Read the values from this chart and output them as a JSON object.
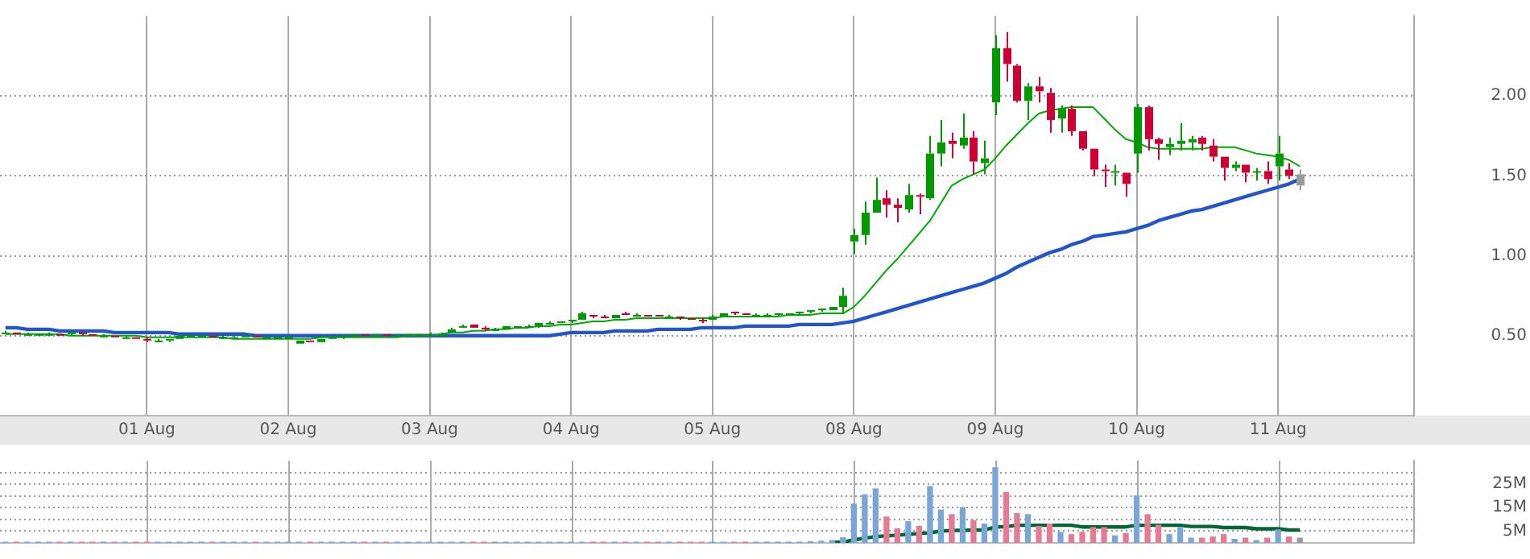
{
  "chart_data": [
    {
      "type": "candlestick",
      "categories": [
        null,
        null,
        null,
        null,
        null,
        null,
        null,
        null,
        null,
        null,
        null,
        null,
        null,
        "01 Aug",
        null,
        null,
        null,
        null,
        null,
        null,
        null,
        null,
        null,
        null,
        null,
        null,
        "02 Aug",
        null,
        null,
        null,
        null,
        null,
        null,
        null,
        null,
        null,
        null,
        null,
        null,
        "03 Aug",
        null,
        null,
        null,
        null,
        null,
        null,
        null,
        null,
        null,
        null,
        null,
        null,
        "04 Aug",
        null,
        null,
        null,
        null,
        null,
        null,
        null,
        null,
        null,
        null,
        null,
        null,
        "05 Aug",
        null,
        null,
        null,
        null,
        null,
        null,
        null,
        null,
        null,
        null,
        null,
        null,
        "08 Aug",
        null,
        null,
        null,
        null,
        null,
        null,
        null,
        null,
        null,
        null,
        null,
        null,
        "09 Aug",
        null,
        null,
        null,
        null,
        null,
        null,
        null,
        null,
        null,
        null,
        null,
        null,
        "10 Aug",
        null,
        null,
        null,
        null,
        null,
        null,
        null,
        null,
        null,
        null,
        null,
        null,
        "11 Aug",
        null,
        null,
        null,
        null,
        null,
        null,
        null,
        null,
        null,
        null,
        null,
        null
      ],
      "ohlc": [
        [
          0.51,
          0.53,
          0.51,
          0.52
        ],
        [
          0.52,
          0.52,
          0.51,
          0.51
        ],
        [
          0.51,
          0.52,
          0.5,
          0.51
        ],
        [
          0.51,
          0.51,
          0.5,
          0.51
        ],
        [
          0.51,
          0.52,
          0.51,
          0.51
        ],
        [
          0.51,
          0.51,
          0.5,
          0.5
        ],
        [
          0.51,
          0.52,
          0.5,
          0.52
        ],
        [
          0.52,
          0.52,
          0.5,
          0.51
        ],
        [
          0.51,
          0.51,
          0.5,
          0.5
        ],
        [
          0.5,
          0.51,
          0.49,
          0.5
        ],
        [
          0.5,
          0.5,
          0.49,
          0.49
        ],
        [
          0.49,
          0.5,
          0.48,
          0.49
        ],
        [
          0.49,
          0.49,
          0.48,
          0.48
        ],
        [
          0.48,
          0.49,
          0.46,
          0.47
        ],
        [
          0.47,
          0.48,
          0.46,
          0.47
        ],
        [
          0.47,
          0.48,
          0.46,
          0.48
        ],
        [
          0.48,
          0.5,
          0.48,
          0.5
        ],
        [
          0.5,
          0.51,
          0.49,
          0.5
        ],
        [
          0.5,
          0.5,
          0.49,
          0.5
        ],
        [
          0.5,
          0.5,
          0.49,
          0.49
        ],
        [
          0.49,
          0.5,
          0.48,
          0.49
        ],
        [
          0.49,
          0.5,
          0.49,
          0.49
        ],
        [
          0.49,
          0.5,
          0.49,
          0.5
        ],
        [
          0.5,
          0.5,
          0.49,
          0.49
        ],
        [
          0.49,
          0.5,
          0.49,
          0.49
        ],
        [
          0.49,
          0.5,
          0.48,
          0.49
        ],
        [
          0.49,
          0.5,
          0.48,
          0.49
        ],
        [
          0.45,
          0.47,
          0.45,
          0.47
        ],
        [
          0.47,
          0.47,
          0.46,
          0.46
        ],
        [
          0.46,
          0.48,
          0.46,
          0.48
        ],
        [
          0.48,
          0.49,
          0.48,
          0.49
        ],
        [
          0.49,
          0.5,
          0.48,
          0.5
        ],
        [
          0.5,
          0.51,
          0.5,
          0.51
        ],
        [
          0.51,
          0.51,
          0.5,
          0.5
        ],
        [
          0.5,
          0.51,
          0.5,
          0.51
        ],
        [
          0.51,
          0.51,
          0.5,
          0.5
        ],
        [
          0.5,
          0.51,
          0.5,
          0.5
        ],
        [
          0.5,
          0.51,
          0.5,
          0.51
        ],
        [
          0.51,
          0.51,
          0.5,
          0.51
        ],
        [
          0.51,
          0.52,
          0.5,
          0.51
        ],
        [
          0.51,
          0.52,
          0.5,
          0.51
        ],
        [
          0.52,
          0.55,
          0.52,
          0.54
        ],
        [
          0.55,
          0.57,
          0.55,
          0.56
        ],
        [
          0.57,
          0.57,
          0.55,
          0.55
        ],
        [
          0.55,
          0.56,
          0.53,
          0.54
        ],
        [
          0.54,
          0.55,
          0.53,
          0.54
        ],
        [
          0.54,
          0.56,
          0.54,
          0.56
        ],
        [
          0.56,
          0.56,
          0.55,
          0.56
        ],
        [
          0.56,
          0.57,
          0.55,
          0.56
        ],
        [
          0.56,
          0.58,
          0.55,
          0.58
        ],
        [
          0.58,
          0.59,
          0.57,
          0.58
        ],
        [
          0.58,
          0.59,
          0.58,
          0.59
        ],
        [
          0.59,
          0.6,
          0.58,
          0.6
        ],
        [
          0.6,
          0.65,
          0.6,
          0.64
        ],
        [
          0.63,
          0.63,
          0.61,
          0.62
        ],
        [
          0.62,
          0.63,
          0.61,
          0.61
        ],
        [
          0.61,
          0.63,
          0.61,
          0.63
        ],
        [
          0.64,
          0.65,
          0.63,
          0.63
        ],
        [
          0.63,
          0.64,
          0.62,
          0.63
        ],
        [
          0.63,
          0.63,
          0.62,
          0.62
        ],
        [
          0.63,
          0.63,
          0.62,
          0.62
        ],
        [
          0.62,
          0.63,
          0.61,
          0.62
        ],
        [
          0.62,
          0.62,
          0.6,
          0.61
        ],
        [
          0.61,
          0.61,
          0.6,
          0.6
        ],
        [
          0.6,
          0.61,
          0.58,
          0.59
        ],
        [
          0.6,
          0.63,
          0.6,
          0.62
        ],
        [
          0.62,
          0.64,
          0.62,
          0.64
        ],
        [
          0.65,
          0.65,
          0.63,
          0.64
        ],
        [
          0.64,
          0.64,
          0.63,
          0.63
        ],
        [
          0.63,
          0.64,
          0.62,
          0.63
        ],
        [
          0.63,
          0.64,
          0.62,
          0.63
        ],
        [
          0.63,
          0.64,
          0.62,
          0.64
        ],
        [
          0.64,
          0.64,
          0.63,
          0.64
        ],
        [
          0.64,
          0.65,
          0.63,
          0.65
        ],
        [
          0.65,
          0.66,
          0.64,
          0.66
        ],
        [
          0.66,
          0.67,
          0.65,
          0.67
        ],
        [
          0.66,
          0.68,
          0.66,
          0.68
        ],
        [
          0.68,
          0.8,
          0.64,
          0.75
        ],
        [
          1.09,
          1.17,
          1.01,
          1.13
        ],
        [
          1.13,
          1.34,
          1.07,
          1.27
        ],
        [
          1.27,
          1.49,
          1.27,
          1.35
        ],
        [
          1.36,
          1.41,
          1.24,
          1.32
        ],
        [
          1.32,
          1.36,
          1.21,
          1.3
        ],
        [
          1.29,
          1.45,
          1.27,
          1.38
        ],
        [
          1.38,
          1.39,
          1.26,
          1.37
        ],
        [
          1.36,
          1.75,
          1.35,
          1.64
        ],
        [
          1.64,
          1.85,
          1.56,
          1.71
        ],
        [
          1.72,
          1.77,
          1.61,
          1.7
        ],
        [
          1.69,
          1.89,
          1.67,
          1.74
        ],
        [
          1.74,
          1.78,
          1.51,
          1.59
        ],
        [
          1.58,
          1.72,
          1.51,
          1.61
        ],
        [
          1.96,
          2.38,
          1.88,
          2.3
        ],
        [
          2.3,
          2.4,
          2.09,
          2.2
        ],
        [
          2.19,
          2.2,
          1.96,
          1.97
        ],
        [
          1.97,
          2.08,
          1.85,
          2.06
        ],
        [
          2.06,
          2.12,
          1.96,
          2.03
        ],
        [
          2.02,
          2.05,
          1.77,
          1.85
        ],
        [
          1.86,
          1.94,
          1.77,
          1.92
        ],
        [
          1.92,
          1.94,
          1.75,
          1.78
        ],
        [
          1.78,
          1.78,
          1.66,
          1.67
        ],
        [
          1.67,
          1.67,
          1.5,
          1.54
        ],
        [
          1.54,
          1.57,
          1.43,
          1.53
        ],
        [
          1.52,
          1.57,
          1.44,
          1.53
        ],
        [
          1.52,
          1.52,
          1.37,
          1.45
        ],
        [
          1.64,
          1.95,
          1.52,
          1.93
        ],
        [
          1.93,
          1.94,
          1.66,
          1.73
        ],
        [
          1.73,
          1.74,
          1.6,
          1.7
        ],
        [
          1.68,
          1.74,
          1.63,
          1.7
        ],
        [
          1.7,
          1.83,
          1.66,
          1.72
        ],
        [
          1.71,
          1.75,
          1.66,
          1.73
        ],
        [
          1.74,
          1.75,
          1.66,
          1.7
        ],
        [
          1.69,
          1.73,
          1.59,
          1.62
        ],
        [
          1.62,
          1.62,
          1.47,
          1.55
        ],
        [
          1.55,
          1.59,
          1.53,
          1.57
        ],
        [
          1.57,
          1.57,
          1.46,
          1.52
        ],
        [
          1.53,
          1.55,
          1.47,
          1.53
        ],
        [
          1.53,
          1.59,
          1.45,
          1.48
        ],
        [
          1.56,
          1.75,
          1.47,
          1.64
        ],
        [
          1.54,
          1.58,
          1.48,
          1.5
        ],
        [
          1.51,
          1.54,
          1.41,
          1.44
        ],
        null,
        null,
        null,
        null,
        null,
        null,
        null,
        null,
        null,
        null
      ],
      "colors": [
        "#009900",
        "#cc0033",
        "#009900",
        "#009900",
        "#009900",
        "#cc0033",
        "#009900",
        "#cc0033",
        "#cc0033",
        "#009900",
        "#cc0033",
        "#009900",
        "#cc0033",
        "#cc0033",
        "#009900",
        "#009900",
        "#009900",
        "#009900",
        "#009900",
        "#cc0033",
        "#009900",
        "#009900",
        "#009900",
        "#cc0033",
        "#009900",
        "#009900",
        "#009900",
        "#009900",
        "#cc0033",
        "#009900",
        "#009900",
        "#009900",
        "#009900",
        "#cc0033",
        "#009900",
        "#cc0033",
        "#009900",
        "#009900",
        "#009900",
        "#009900",
        "#009900",
        "#009900",
        "#009900",
        "#cc0033",
        "#cc0033",
        "#009900",
        "#009900",
        "#009900",
        "#009900",
        "#009900",
        "#009900",
        "#009900",
        "#009900",
        "#009900",
        "#cc0033",
        "#cc0033",
        "#009900",
        "#cc0033",
        "#009900",
        "#cc0033",
        "#cc0033",
        "#009900",
        "#cc0033",
        "#cc0033",
        "#cc0033",
        "#009900",
        "#009900",
        "#cc0033",
        "#cc0033",
        "#009900",
        "#009900",
        "#009900",
        "#009900",
        "#009900",
        "#009900",
        "#009900",
        "#009900",
        "#009900",
        "#009900",
        "#009900",
        "#009900",
        "#cc0033",
        "#cc0033",
        "#009900",
        "#cc0033",
        "#009900",
        "#009900",
        "#cc0033",
        "#009900",
        "#cc0033",
        "#009900",
        "#009900",
        "#cc0033",
        "#cc0033",
        "#009900",
        "#cc0033",
        "#cc0033",
        "#009900",
        "#cc0033",
        "#cc0033",
        "#cc0033",
        "#cc0033",
        "#009900",
        "#cc0033",
        "#009900",
        "#cc0033",
        "#cc0033",
        "#009900",
        "#009900",
        "#009900",
        "#cc0033",
        "#cc0033",
        "#cc0033",
        "#009900",
        "#cc0033",
        "#009900",
        "#cc0033",
        "#009900",
        "#cc0033",
        "#999999",
        null,
        null,
        null,
        null,
        null,
        null,
        null,
        null,
        null,
        null
      ],
      "series": [
        {
          "type": "line",
          "color": "#00aa00",
          "values": [
            0.51,
            0.51,
            0.51,
            0.51,
            0.51,
            0.51,
            0.5,
            0.5,
            0.5,
            0.5,
            0.5,
            0.5,
            0.5,
            0.49,
            0.49,
            0.49,
            0.49,
            0.49,
            0.49,
            0.49,
            0.49,
            0.48,
            0.48,
            0.48,
            0.48,
            0.48,
            0.48,
            0.48,
            0.48,
            0.49,
            0.49,
            0.49,
            0.49,
            0.49,
            0.49,
            0.49,
            0.49,
            0.5,
            0.5,
            0.5,
            0.51,
            0.52,
            0.52,
            0.53,
            0.53,
            0.54,
            0.54,
            0.55,
            0.55,
            0.56,
            0.56,
            0.57,
            0.57,
            0.58,
            0.59,
            0.59,
            0.6,
            0.6,
            0.61,
            0.61,
            0.61,
            0.61,
            0.61,
            0.61,
            0.61,
            0.61,
            0.62,
            0.62,
            0.62,
            0.62,
            0.62,
            0.62,
            0.63,
            0.63,
            0.63,
            0.64,
            0.64,
            0.64,
            0.68,
            0.75,
            0.83,
            0.91,
            0.98,
            1.06,
            1.14,
            1.22,
            1.33,
            1.44,
            1.48,
            1.51,
            1.54,
            1.61,
            1.69,
            1.76,
            1.83,
            1.89,
            1.91,
            1.92,
            1.93,
            1.93,
            1.93,
            1.86,
            1.79,
            1.73,
            1.71,
            1.68,
            1.67,
            1.67,
            1.67,
            1.67,
            1.67,
            1.68,
            1.68,
            1.68,
            1.66,
            1.64,
            1.63,
            1.62,
            1.6,
            1.56,
            null,
            null,
            null,
            null,
            null,
            null,
            null,
            null,
            null,
            null
          ]
        },
        {
          "type": "line",
          "color": "#2255cc",
          "values": [
            0.55,
            0.55,
            0.54,
            0.54,
            0.54,
            0.53,
            0.53,
            0.53,
            0.53,
            0.53,
            0.52,
            0.52,
            0.52,
            0.52,
            0.52,
            0.52,
            0.51,
            0.51,
            0.51,
            0.51,
            0.51,
            0.51,
            0.51,
            0.5,
            0.5,
            0.5,
            0.5,
            0.5,
            0.5,
            0.5,
            0.5,
            0.5,
            0.5,
            0.5,
            0.5,
            0.5,
            0.5,
            0.5,
            0.5,
            0.5,
            0.5,
            0.5,
            0.5,
            0.5,
            0.5,
            0.5,
            0.5,
            0.5,
            0.5,
            0.5,
            0.5,
            0.51,
            0.52,
            0.52,
            0.52,
            0.52,
            0.53,
            0.53,
            0.53,
            0.53,
            0.54,
            0.54,
            0.54,
            0.54,
            0.55,
            0.55,
            0.55,
            0.55,
            0.56,
            0.56,
            0.56,
            0.56,
            0.56,
            0.57,
            0.57,
            0.57,
            0.57,
            0.58,
            0.59,
            0.61,
            0.63,
            0.65,
            0.67,
            0.69,
            0.71,
            0.73,
            0.75,
            0.77,
            0.79,
            0.81,
            0.83,
            0.86,
            0.89,
            0.93,
            0.96,
            0.99,
            1.02,
            1.04,
            1.07,
            1.09,
            1.12,
            1.13,
            1.14,
            1.15,
            1.17,
            1.19,
            1.22,
            1.24,
            1.26,
            1.28,
            1.29,
            1.31,
            1.33,
            1.35,
            1.37,
            1.39,
            1.41,
            1.43,
            1.45,
            1.48,
            null,
            null,
            null,
            null,
            null,
            null,
            null,
            null,
            null,
            null
          ]
        }
      ],
      "ylim": [
        0,
        2.5
      ],
      "yticks": [
        {
          "value": 0.5,
          "label": "0.50"
        },
        {
          "value": 1,
          "label": "1.00"
        },
        {
          "value": 1.5,
          "label": "1.50"
        },
        {
          "value": 2,
          "label": "2.00"
        }
      ],
      "grid": true
    },
    {
      "type": "bar",
      "categories": [
        null,
        null,
        null,
        null,
        null,
        null,
        null,
        null,
        null,
        null,
        null,
        null,
        null,
        null,
        null,
        null,
        null,
        null,
        null,
        null,
        null,
        null,
        null,
        null,
        null,
        null,
        null,
        null,
        null,
        null,
        null,
        null,
        null,
        null,
        null,
        null,
        null,
        null,
        null,
        null,
        null,
        null,
        null,
        null,
        null,
        null,
        null,
        null,
        null,
        null,
        null,
        null,
        null,
        null,
        null,
        null,
        null,
        null,
        null,
        null,
        null,
        null,
        null,
        null,
        null,
        null,
        null,
        null,
        null,
        null,
        null,
        null,
        null,
        null,
        null,
        null,
        null,
        null,
        null,
        null,
        null,
        null,
        null,
        null,
        null,
        null,
        null,
        null,
        null,
        null,
        null,
        null,
        null,
        null,
        null,
        null,
        null,
        null,
        null,
        null,
        null,
        null,
        null,
        null,
        null,
        null,
        null,
        null,
        null,
        null,
        null,
        null,
        null,
        null,
        null,
        null,
        null,
        null,
        null,
        null,
        null,
        null,
        null,
        null,
        null,
        null,
        null,
        null,
        null,
        null
      ],
      "series": [
        {
          "type": "bar",
          "values": [
            0.3,
            0.3,
            0.3,
            0.3,
            0.3,
            0.3,
            0.3,
            0.3,
            0.3,
            0.3,
            0.3,
            0.3,
            0.3,
            0.3,
            0.3,
            0.3,
            0.3,
            0.3,
            0.3,
            0.3,
            0.3,
            0.3,
            0.3,
            0.3,
            0.3,
            0.3,
            0.3,
            0.3,
            0.3,
            0.3,
            0.3,
            0.3,
            0.3,
            0.3,
            0.3,
            0.3,
            0.3,
            0.3,
            0.3,
            0.3,
            0.3,
            0.3,
            0.3,
            0.3,
            0.3,
            0.3,
            0.3,
            0.3,
            0.3,
            0.3,
            0.3,
            0.3,
            0.3,
            0.3,
            0.3,
            0.3,
            0.3,
            0.3,
            0.3,
            0.3,
            0.3,
            0.3,
            0.3,
            0.3,
            0.3,
            0.3,
            0.3,
            0.3,
            0.3,
            0.3,
            0.3,
            0.3,
            0.3,
            0.3,
            0.5,
            0.7,
            1,
            2.2,
            16.5,
            20.5,
            23,
            11,
            6,
            9,
            7,
            24,
            14,
            12,
            15,
            9.5,
            8,
            32,
            21.5,
            12.5,
            12,
            7,
            8,
            4.5,
            3.5,
            4.5,
            6.5,
            6.5,
            3,
            4,
            20,
            12,
            7.5,
            3.5,
            6.5,
            2,
            2,
            2.5,
            3.5,
            1.5,
            2,
            1,
            2,
            5.5,
            2.5,
            2,
            null,
            null,
            null,
            null,
            null,
            null,
            null,
            null,
            null,
            null
          ],
          "colors": [
            "#7aa6d6",
            "#e57a94",
            "#7aa6d6",
            "#7aa6d6",
            "#7aa6d6",
            "#e57a94",
            "#7aa6d6",
            "#e57a94",
            "#e57a94",
            "#7aa6d6",
            "#e57a94",
            "#7aa6d6",
            "#e57a94",
            "#e57a94",
            "#7aa6d6",
            "#7aa6d6",
            "#7aa6d6",
            "#7aa6d6",
            "#7aa6d6",
            "#e57a94",
            "#7aa6d6",
            "#7aa6d6",
            "#7aa6d6",
            "#e57a94",
            "#7aa6d6",
            "#7aa6d6",
            "#7aa6d6",
            "#7aa6d6",
            "#e57a94",
            "#7aa6d6",
            "#7aa6d6",
            "#7aa6d6",
            "#7aa6d6",
            "#e57a94",
            "#7aa6d6",
            "#e57a94",
            "#7aa6d6",
            "#7aa6d6",
            "#7aa6d6",
            "#7aa6d6",
            "#7aa6d6",
            "#7aa6d6",
            "#7aa6d6",
            "#e57a94",
            "#e57a94",
            "#7aa6d6",
            "#7aa6d6",
            "#7aa6d6",
            "#7aa6d6",
            "#7aa6d6",
            "#7aa6d6",
            "#7aa6d6",
            "#7aa6d6",
            "#7aa6d6",
            "#e57a94",
            "#e57a94",
            "#7aa6d6",
            "#e57a94",
            "#7aa6d6",
            "#e57a94",
            "#e57a94",
            "#7aa6d6",
            "#e57a94",
            "#e57a94",
            "#e57a94",
            "#7aa6d6",
            "#7aa6d6",
            "#e57a94",
            "#e57a94",
            "#7aa6d6",
            "#7aa6d6",
            "#7aa6d6",
            "#7aa6d6",
            "#7aa6d6",
            "#7aa6d6",
            "#7aa6d6",
            "#7aa6d6",
            "#7aa6d6",
            "#7aa6d6",
            "#7aa6d6",
            "#7aa6d6",
            "#e57a94",
            "#e57a94",
            "#7aa6d6",
            "#e57a94",
            "#7aa6d6",
            "#7aa6d6",
            "#e57a94",
            "#7aa6d6",
            "#e57a94",
            "#7aa6d6",
            "#7aa6d6",
            "#e57a94",
            "#e57a94",
            "#7aa6d6",
            "#e57a94",
            "#e57a94",
            "#7aa6d6",
            "#e57a94",
            "#e57a94",
            "#e57a94",
            "#e57a94",
            "#7aa6d6",
            "#e57a94",
            "#7aa6d6",
            "#e57a94",
            "#e57a94",
            "#7aa6d6",
            "#7aa6d6",
            "#7aa6d6",
            "#e57a94",
            "#e57a94",
            "#e57a94",
            "#7aa6d6",
            "#e57a94",
            "#7aa6d6",
            "#e57a94",
            "#7aa6d6",
            "#e57a94",
            "#999999",
            null,
            null,
            null,
            null,
            null,
            null,
            null,
            null,
            null,
            null
          ]
        },
        {
          "type": "line",
          "color": "#006633",
          "values": [
            null,
            null,
            null,
            null,
            null,
            null,
            null,
            null,
            null,
            null,
            null,
            null,
            null,
            null,
            null,
            null,
            null,
            null,
            null,
            null,
            null,
            null,
            null,
            null,
            null,
            null,
            null,
            null,
            null,
            null,
            null,
            null,
            null,
            null,
            null,
            null,
            null,
            null,
            null,
            null,
            null,
            null,
            null,
            null,
            null,
            null,
            null,
            null,
            null,
            null,
            null,
            null,
            null,
            null,
            null,
            null,
            null,
            null,
            null,
            null,
            null,
            null,
            null,
            null,
            null,
            null,
            null,
            null,
            null,
            null,
            null,
            null,
            null,
            null,
            null,
            null,
            0.3,
            0.3,
            1.3,
            2,
            2.7,
            3,
            3.3,
            3.7,
            4,
            4.3,
            5,
            5.3,
            5.3,
            5.5,
            5.5,
            6.7,
            7,
            7.5,
            7.5,
            7.5,
            7.5,
            7.5,
            7.5,
            6.8,
            6.8,
            6.8,
            6.8,
            6.8,
            7.5,
            7.5,
            7.5,
            7.5,
            7.5,
            7,
            7,
            7,
            6.5,
            6.5,
            6.5,
            6,
            6,
            6,
            5.5,
            5.5,
            null,
            null,
            null,
            null,
            null,
            null,
            null,
            null,
            null,
            null
          ]
        }
      ],
      "ylim": [
        0,
        35
      ],
      "yticks": [
        {
          "value": 5,
          "label": "5M"
        },
        {
          "value": 10,
          "label": null
        },
        {
          "value": 15,
          "label": "15M"
        },
        {
          "value": 20,
          "label": null
        },
        {
          "value": 25,
          "label": "25M"
        },
        {
          "value": 30,
          "label": null
        }
      ],
      "grid": "y",
      "tick_labels": "y"
    }
  ]
}
